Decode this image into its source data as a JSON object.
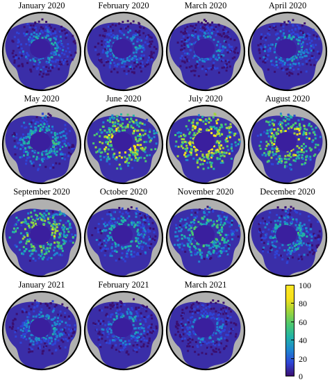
{
  "panels": [
    {
      "title": "January  2020",
      "icon": "arctic-ice-map",
      "intensity": 0.4
    },
    {
      "title": "February  2020",
      "icon": "arctic-ice-map",
      "intensity": 0.38
    },
    {
      "title": "March  2020",
      "icon": "arctic-ice-map",
      "intensity": 0.36
    },
    {
      "title": "April  2020",
      "icon": "arctic-ice-map",
      "intensity": 0.42
    },
    {
      "title": "May  2020",
      "icon": "arctic-ice-map",
      "intensity": 0.52
    },
    {
      "title": "June  2020",
      "icon": "arctic-ice-map",
      "intensity": 0.88
    },
    {
      "title": "July  2020",
      "icon": "arctic-ice-map",
      "intensity": 0.97
    },
    {
      "title": "August  2020",
      "icon": "arctic-ice-map",
      "intensity": 0.85
    },
    {
      "title": "September  2020",
      "icon": "arctic-ice-map",
      "intensity": 0.75
    },
    {
      "title": "October  2020",
      "icon": "arctic-ice-map",
      "intensity": 0.5
    },
    {
      "title": "November  2020",
      "icon": "arctic-ice-map",
      "intensity": 0.58
    },
    {
      "title": "December  2020",
      "icon": "arctic-ice-map",
      "intensity": 0.46
    },
    {
      "title": "January  2021",
      "icon": "arctic-ice-map",
      "intensity": 0.4
    },
    {
      "title": "February  2021",
      "icon": "arctic-ice-map",
      "intensity": 0.38
    },
    {
      "title": "March  2021",
      "icon": "arctic-ice-map",
      "intensity": 0.36
    }
  ],
  "colorbar": {
    "ticks": [
      "100",
      "80",
      "60",
      "40",
      "20",
      "0"
    ],
    "range": [
      0,
      100
    ],
    "colormap": [
      "#3b0f70",
      "#2f44d6",
      "#1e86d0",
      "#21b3a7",
      "#4cc86f",
      "#9fd43a",
      "#f7e11b",
      "#fde725"
    ]
  },
  "colors": {
    "land": "#b0b0b0",
    "ocean": "#3a2ea8",
    "pole": "#3a1f9e"
  }
}
